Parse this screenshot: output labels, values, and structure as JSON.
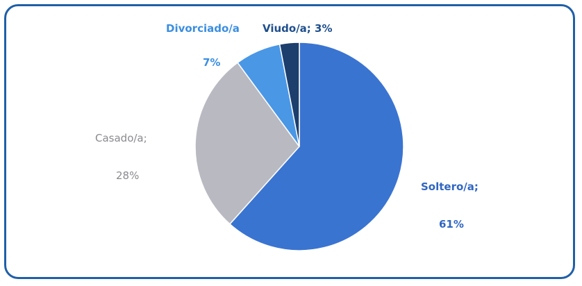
{
  "chart_data": {
    "type": "pie",
    "title": "",
    "slices": [
      {
        "category": "Soltero/a",
        "value": 61,
        "color": "#3a74d1",
        "label_line1": "Soltero/a;",
        "label_line2": "61%",
        "label_color": "#2f66c2",
        "label_bold": true
      },
      {
        "category": "Casado/a",
        "value": 28,
        "color": "#b9b9c2",
        "label_line1": "Casado/a;",
        "label_line2": "28%",
        "label_color": "#8a8a90",
        "label_bold": false
      },
      {
        "category": "Divorciado/a",
        "value": 7,
        "color": "#4a97e6",
        "label_line1": "Divorciado/a",
        "label_line2": "7%",
        "label_color": "#3b8ee0",
        "label_bold": true
      },
      {
        "category": "Viudo/a",
        "value": 3,
        "color": "#1c3f6e",
        "label_line1": "Viudo/a; 3%",
        "label_line2": "",
        "label_color": "#1f4f8c",
        "label_bold": true
      }
    ],
    "start_angle_deg": 0,
    "direction": "clockwise",
    "border_color": "#1f5fa8"
  }
}
